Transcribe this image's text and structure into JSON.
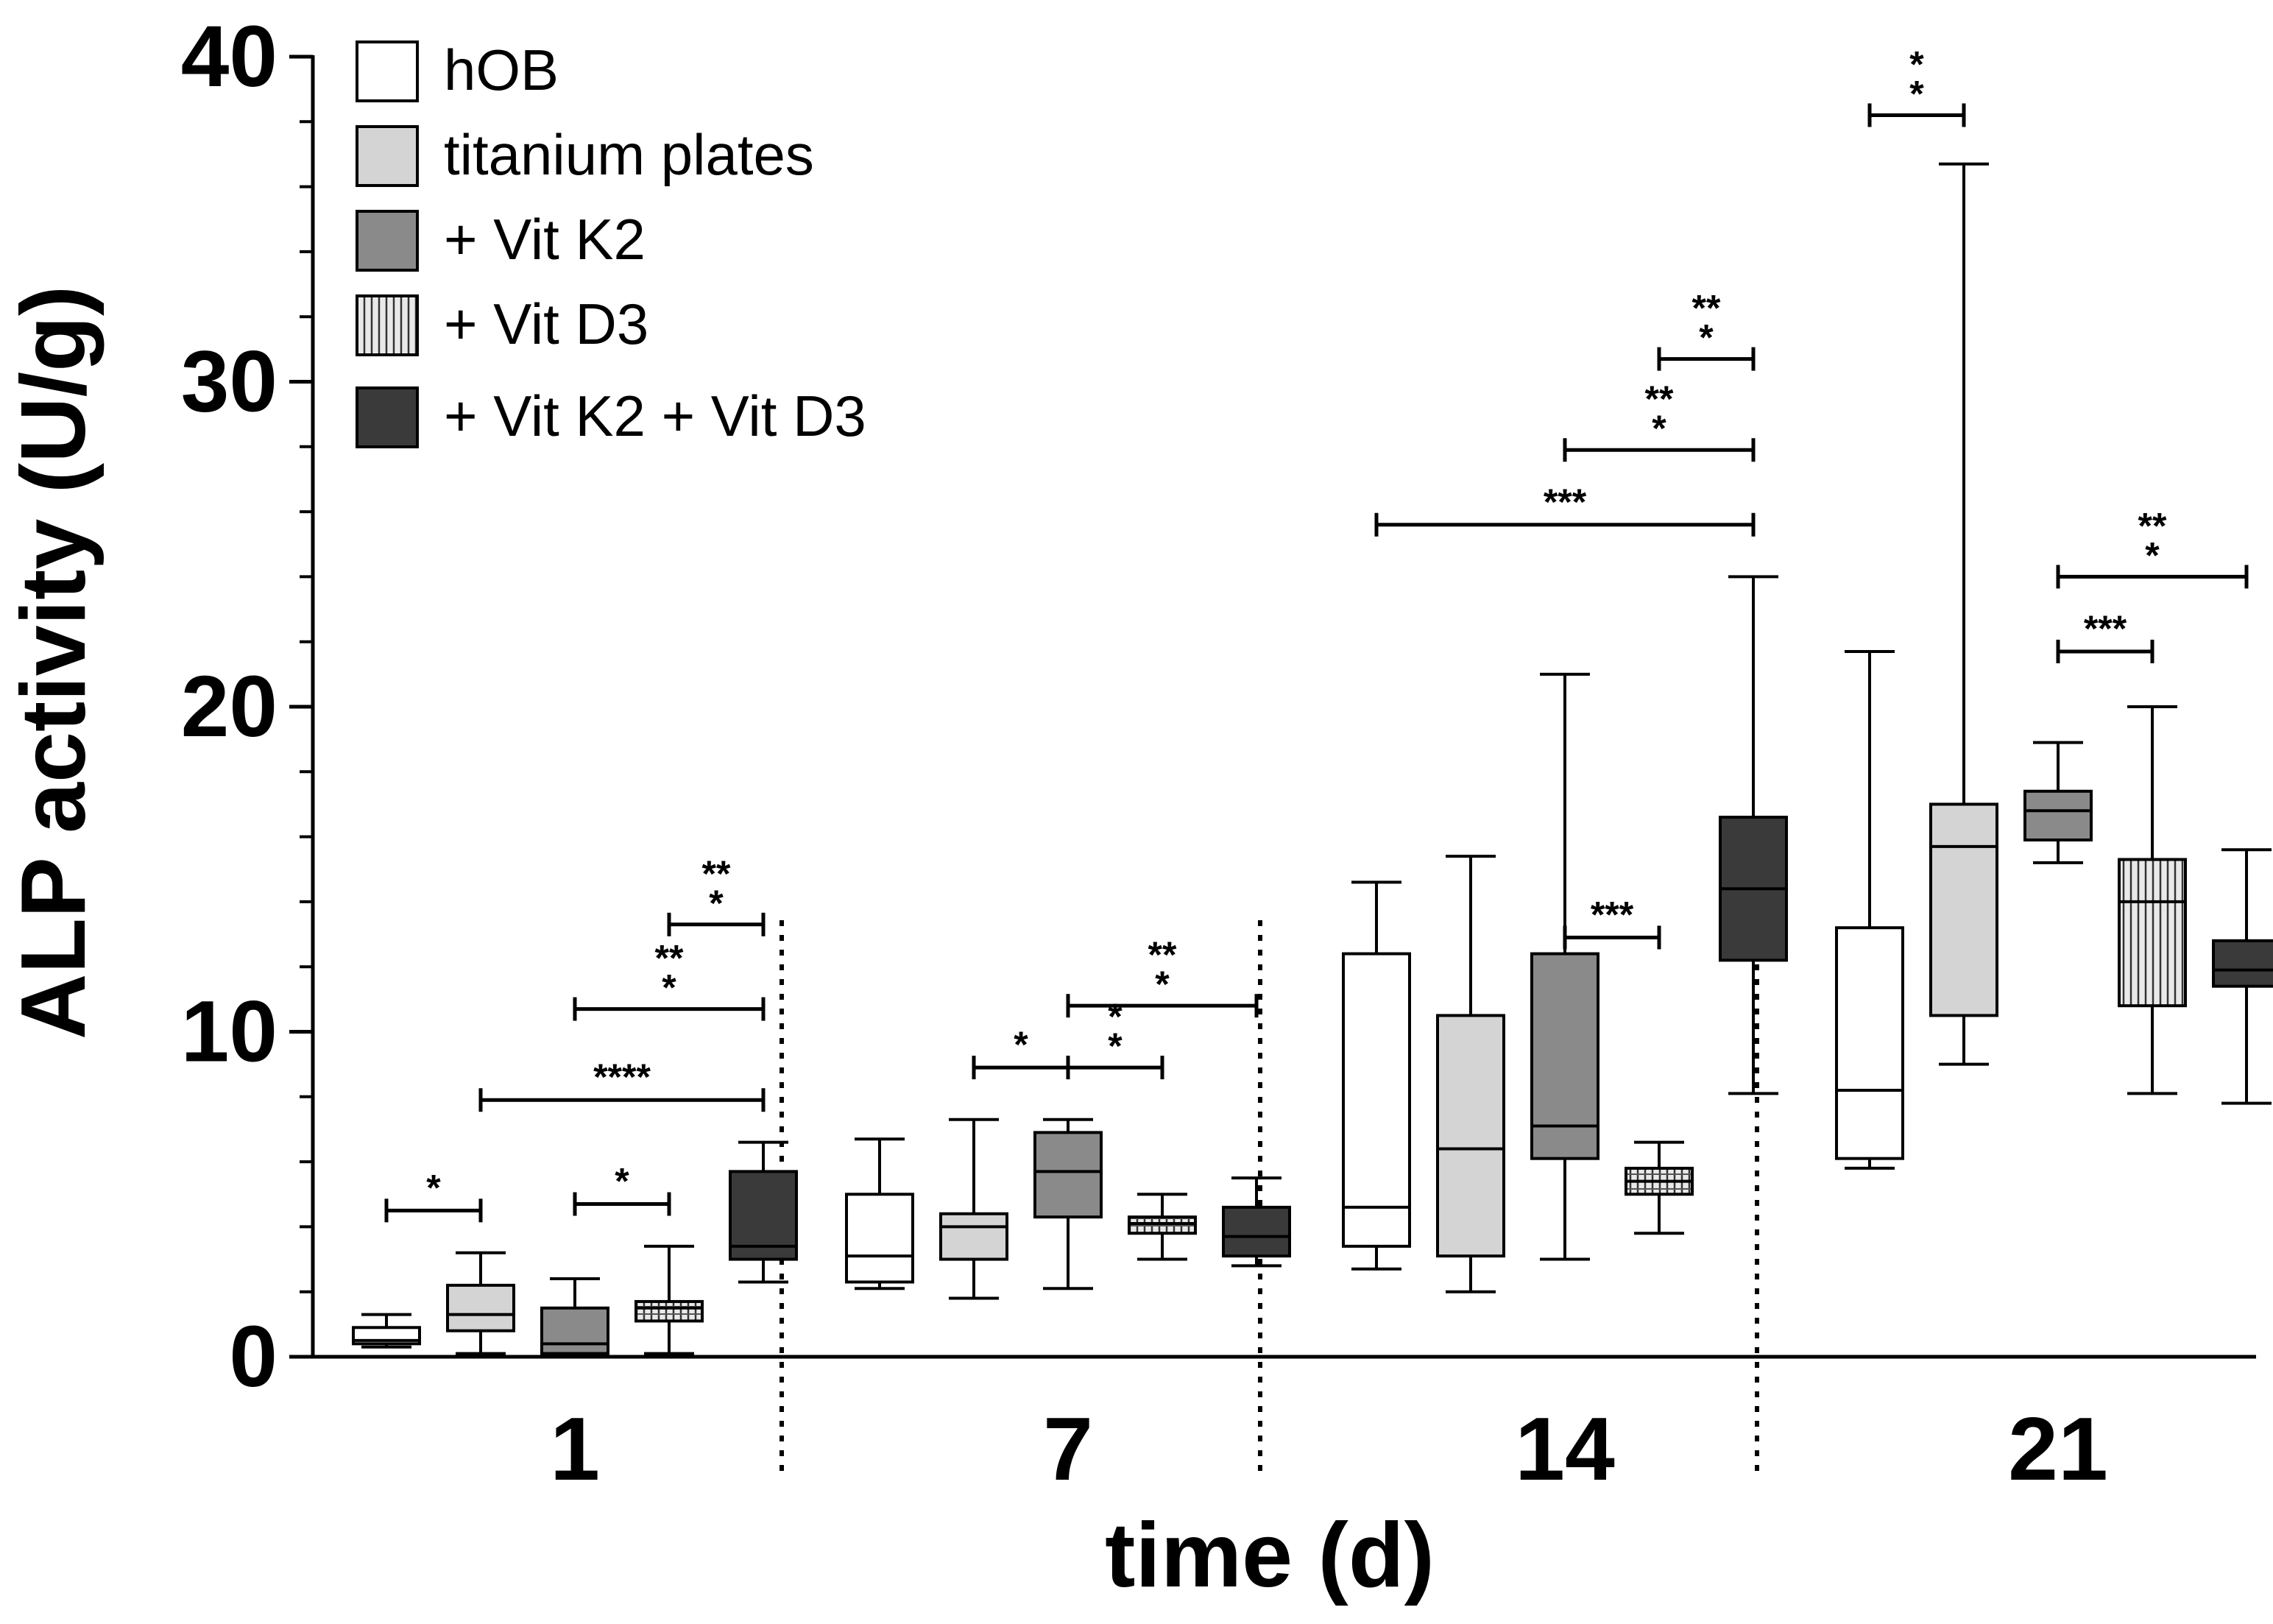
{
  "chart_data": {
    "type": "box",
    "title": "",
    "xlabel": "time (d)",
    "ylabel": "ALP activity (U/g)",
    "ylim": [
      0,
      40
    ],
    "yticks": [
      0,
      10,
      20,
      30,
      40
    ],
    "y_minor_step": 2,
    "grid": false,
    "legend_position": "top-left",
    "colors": {
      "hOB": "#ffffff",
      "titanium plates": "#d4d4d4",
      "+ Vit K2": "#8a8a8a",
      "+ Vit D3": "#e9e9e9",
      "+ Vit K2 + Vit D3": "#3a3a3a",
      "stroke": "#000000"
    },
    "series": [
      {
        "name": "hOB",
        "fill": "#ffffff",
        "pattern": "none"
      },
      {
        "name": "titanium plates",
        "fill": "#d4d4d4",
        "pattern": "none"
      },
      {
        "name": "+ Vit K2",
        "fill": "#8a8a8a",
        "pattern": "none"
      },
      {
        "name": "+ Vit D3",
        "fill": "#e9e9e9",
        "pattern": "vertical-lines"
      },
      {
        "name": "+ Vit K2 + Vit D3",
        "fill": "#3a3a3a",
        "pattern": "none"
      }
    ],
    "categories": [
      "1",
      "7",
      "14",
      "21"
    ],
    "boxes": [
      [
        {
          "min": 0.3,
          "q1": 0.4,
          "median": 0.5,
          "q3": 0.9,
          "max": 1.3
        },
        {
          "min": 0.1,
          "q1": 0.8,
          "median": 1.3,
          "q3": 2.2,
          "max": 3.2
        },
        {
          "min": 0.0,
          "q1": 0.1,
          "median": 0.4,
          "q3": 1.5,
          "max": 2.4
        },
        {
          "min": 0.1,
          "q1": 1.1,
          "median": 1.5,
          "q3": 1.7,
          "max": 3.4
        },
        {
          "min": 2.3,
          "q1": 3.0,
          "median": 3.4,
          "q3": 5.7,
          "max": 6.6
        }
      ],
      [
        {
          "min": 2.1,
          "q1": 2.3,
          "median": 3.1,
          "q3": 5.0,
          "max": 6.7
        },
        {
          "min": 1.8,
          "q1": 3.0,
          "median": 4.0,
          "q3": 4.4,
          "max": 7.3
        },
        {
          "min": 2.1,
          "q1": 4.3,
          "median": 5.7,
          "q3": 6.9,
          "max": 7.3
        },
        {
          "min": 3.0,
          "q1": 3.8,
          "median": 4.1,
          "q3": 4.3,
          "max": 5.0
        },
        {
          "min": 2.8,
          "q1": 3.1,
          "median": 3.7,
          "q3": 4.6,
          "max": 5.5
        }
      ],
      [
        {
          "min": 2.7,
          "q1": 3.4,
          "median": 4.6,
          "q3": 12.4,
          "max": 14.6
        },
        {
          "min": 2.0,
          "q1": 3.1,
          "median": 6.4,
          "q3": 10.5,
          "max": 15.4
        },
        {
          "min": 3.0,
          "q1": 6.1,
          "median": 7.1,
          "q3": 12.4,
          "max": 21.0
        },
        {
          "min": 3.8,
          "q1": 5.0,
          "median": 5.4,
          "q3": 5.8,
          "max": 6.6
        },
        {
          "min": 8.1,
          "q1": 12.2,
          "median": 14.4,
          "q3": 16.6,
          "max": 24.0
        }
      ],
      [
        {
          "min": 5.8,
          "q1": 6.1,
          "median": 8.2,
          "q3": 13.2,
          "max": 21.7
        },
        {
          "min": 9.0,
          "q1": 10.5,
          "median": 15.7,
          "q3": 17.0,
          "max": 36.7
        },
        {
          "min": 15.2,
          "q1": 15.9,
          "median": 16.8,
          "q3": 17.4,
          "max": 18.9
        },
        {
          "min": 8.1,
          "q1": 10.8,
          "median": 14.0,
          "q3": 15.3,
          "max": 20.0
        },
        {
          "min": 7.8,
          "q1": 11.4,
          "median": 11.9,
          "q3": 12.8,
          "max": 15.6
        }
      ]
    ],
    "significance": [
      {
        "group": 0,
        "from": 0,
        "to": 1,
        "y": 4.5,
        "label": "*"
      },
      {
        "group": 0,
        "from": 2,
        "to": 3,
        "y": 4.7,
        "label": "*"
      },
      {
        "group": 0,
        "from": 1,
        "to": 4,
        "y": 7.9,
        "label": "****"
      },
      {
        "group": 0,
        "from": 2,
        "to": 4,
        "y": 10.7,
        "label": "***"
      },
      {
        "group": 0,
        "from": 3,
        "to": 4,
        "y": 13.3,
        "label": "***"
      },
      {
        "group": 1,
        "from": 1,
        "to": 2,
        "y": 8.9,
        "label": "*"
      },
      {
        "group": 1,
        "from": 2,
        "to": 3,
        "y": 8.9,
        "label": "**"
      },
      {
        "group": 1,
        "from": 2,
        "to": 4,
        "y": 10.8,
        "label": "***"
      },
      {
        "group": 2,
        "from": 2,
        "to": 3,
        "y": 12.9,
        "label": "***"
      },
      {
        "group": 2,
        "from": 0,
        "to": 4,
        "y": 25.6,
        "label": "***"
      },
      {
        "group": 2,
        "from": 2,
        "to": 4,
        "y": 27.9,
        "label": "***"
      },
      {
        "group": 2,
        "from": 3,
        "to": 4,
        "y": 30.7,
        "label": "***"
      },
      {
        "group": 3,
        "from": 0,
        "to": 1,
        "y": 38.2,
        "label": "**"
      },
      {
        "group": 3,
        "from": 2,
        "to": 3,
        "y": 21.7,
        "label": "***"
      },
      {
        "group": 3,
        "from": 2,
        "to": 4,
        "y": 24.0,
        "label": "***"
      }
    ]
  }
}
